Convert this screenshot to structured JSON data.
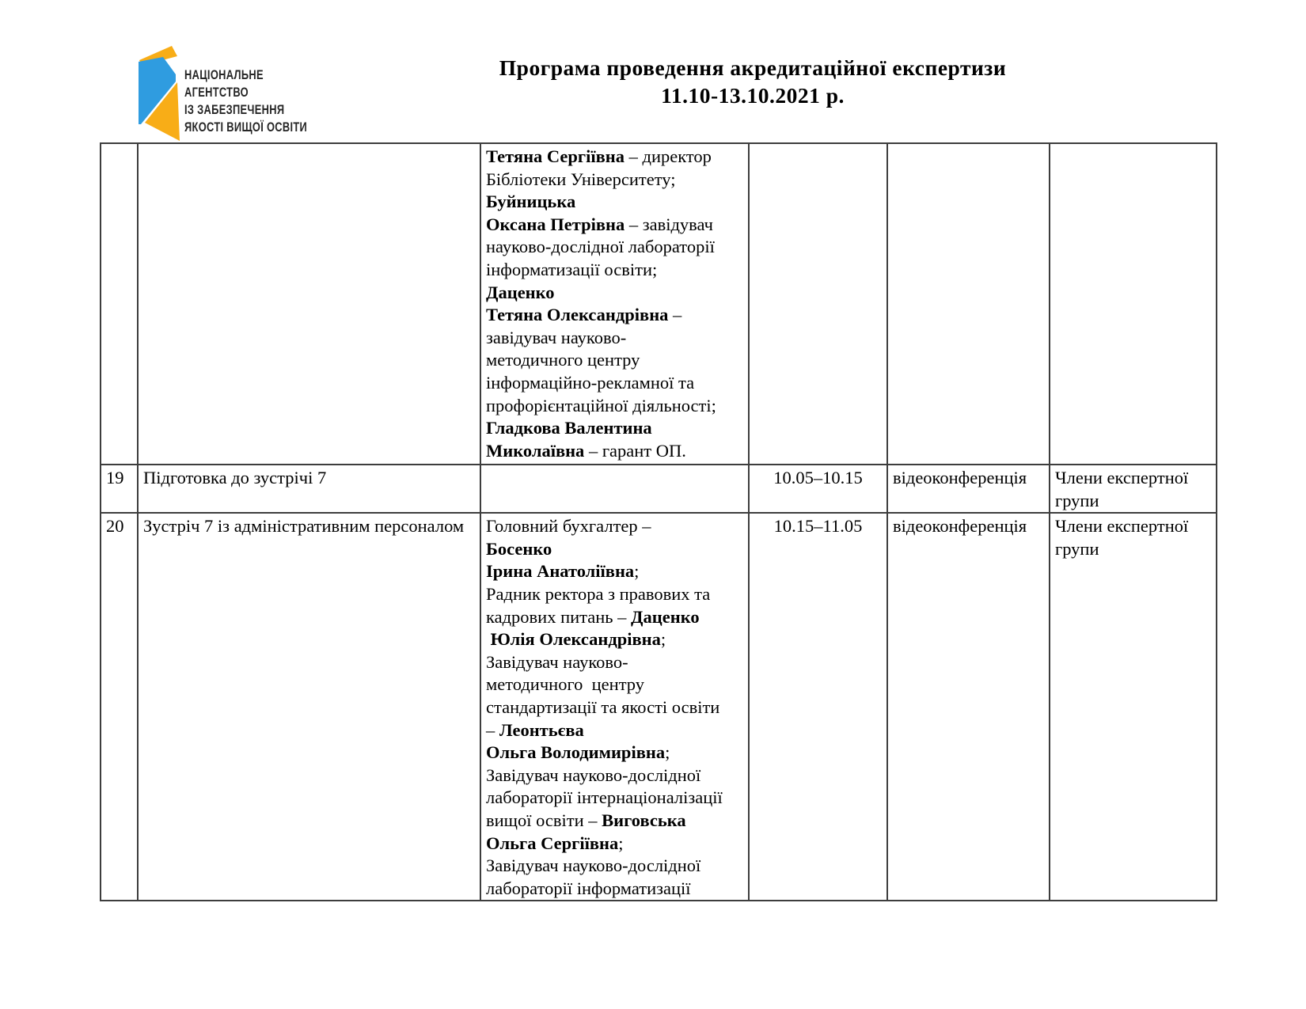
{
  "logo": {
    "lines": [
      "НАЦІОНАЛЬНЕ",
      "АГЕНТСТВО",
      "ІЗ ЗАБЕЗПЕЧЕННЯ",
      "ЯКОСТІ ВИЩОЇ ОСВІТИ"
    ],
    "colors": {
      "blue": "#2f9ce0",
      "orange": "#f8ad17"
    }
  },
  "header": {
    "title_line1": "Програма проведення акредитаційної експертизи",
    "title_line2": "11.10-13.10.2021 р."
  },
  "table": {
    "border_color": "#3d3d3d",
    "rows": [
      {
        "num": "",
        "desc": "",
        "participants": [
          [
            {
              "t": "Тетяна Сергіївна",
              "b": true
            },
            {
              "t": " – директор",
              "b": false
            }
          ],
          [
            {
              "t": "Бібліотеки Університету;",
              "b": false
            }
          ],
          [
            {
              "t": "Буйницька",
              "b": true
            }
          ],
          [
            {
              "t": "Оксана Петрівна",
              "b": true
            },
            {
              "t": " – завідувач",
              "b": false
            }
          ],
          [
            {
              "t": "науково-дослідної лабораторії",
              "b": false
            }
          ],
          [
            {
              "t": "інформатизації освіти;",
              "b": false
            }
          ],
          [
            {
              "t": "Даценко",
              "b": true
            }
          ],
          [
            {
              "t": "Тетяна Олександрівна",
              "b": true
            },
            {
              "t": " –",
              "b": false
            }
          ],
          [
            {
              "t": "завідувач науково-",
              "b": false
            }
          ],
          [
            {
              "t": "методичного центру",
              "b": false
            }
          ],
          [
            {
              "t": "інформаційно-рекламної та",
              "b": false
            }
          ],
          [
            {
              "t": "профорієнтаційної діяльності;",
              "b": false
            }
          ],
          [
            {
              "t": "Гладкова Валентина",
              "b": true
            }
          ],
          [
            {
              "t": "Миколаївна",
              "b": true
            },
            {
              "t": " – гарант ОП.",
              "b": false
            }
          ]
        ],
        "time": "",
        "format": "",
        "attendees": ""
      },
      {
        "num": "19",
        "desc": "Підготовка до зустрічі 7",
        "participants": [],
        "time": "10.05–10.15",
        "format": "відеоконференція",
        "attendees": "Члени експертної групи"
      },
      {
        "num": "20",
        "desc": "Зустріч 7 із адміністративним персоналом",
        "participants": [
          [
            {
              "t": "Головний бухгалтер –",
              "b": false
            }
          ],
          [
            {
              "t": "Босенко",
              "b": true
            }
          ],
          [
            {
              "t": "Ірина Анатоліївна",
              "b": true
            },
            {
              "t": ";",
              "b": false
            }
          ],
          [
            {
              "t": "Радник ректора з правових та",
              "b": false
            }
          ],
          [
            {
              "t": "кадрових питань – ",
              "b": false
            },
            {
              "t": "Даценко",
              "b": true
            }
          ],
          [
            {
              "t": " ",
              "b": false
            },
            {
              "t": "Юлія Олександрівна",
              "b": true
            },
            {
              "t": ";",
              "b": false
            }
          ],
          [
            {
              "t": "Завідувач науково-",
              "b": false
            }
          ],
          [
            {
              "t": "методичного  центру",
              "b": false
            }
          ],
          [
            {
              "t": "стандартизації та якості освіти",
              "b": false
            }
          ],
          [
            {
              "t": "– ",
              "b": false
            },
            {
              "t": "Леонтьєва",
              "b": true
            }
          ],
          [
            {
              "t": "Ольга Володимирівна",
              "b": true
            },
            {
              "t": ";",
              "b": false
            }
          ],
          [
            {
              "t": "Завідувач науково-дослідної",
              "b": false
            }
          ],
          [
            {
              "t": "лабораторії інтернаціоналізації",
              "b": false
            }
          ],
          [
            {
              "t": "вищої освіти – ",
              "b": false
            },
            {
              "t": "Виговська",
              "b": true
            }
          ],
          [
            {
              "t": "Ольга Сергіївна",
              "b": true
            },
            {
              "t": ";",
              "b": false
            }
          ],
          [
            {
              "t": "Завідувач науково-дослідної",
              "b": false
            }
          ],
          [
            {
              "t": "лабораторії інформатизації",
              "b": false
            }
          ]
        ],
        "time": "10.15–11.05",
        "format": "відеоконференція",
        "attendees": "Члени експертної групи"
      }
    ]
  }
}
